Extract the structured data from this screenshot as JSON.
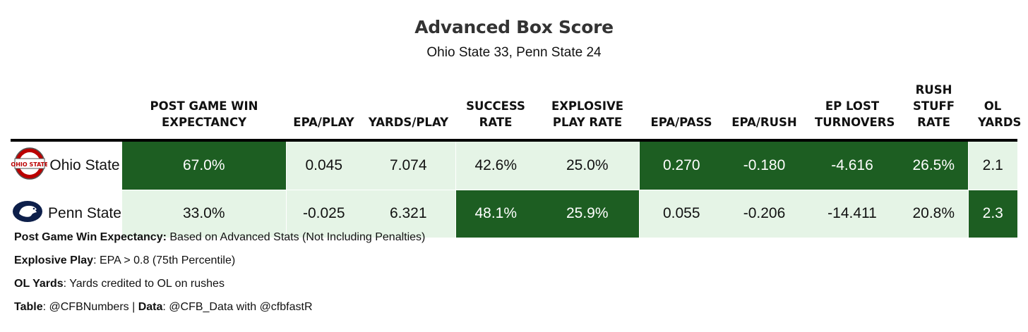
{
  "title": "Advanced Box Score",
  "subtitle": "Ohio State 33, Penn State 24",
  "colors": {
    "high": "#1d5e22",
    "low": "#e5f4e6",
    "text_on_high": "#ffffff"
  },
  "chart_data": {
    "type": "table",
    "columns": [
      "POST GAME WIN EXPECTANCY",
      "EPA/PLAY",
      "YARDS/PLAY",
      "SUCCESS RATE",
      "EXPLOSIVE PLAY RATE",
      "EPA/PASS",
      "EPA/RUSH",
      "EP LOST TURNOVERS",
      "RUSH STUFF RATE",
      "OL YARDS"
    ],
    "rows": [
      {
        "team": "Ohio State",
        "logo": "ohio-state-logo",
        "values": [
          "67.0%",
          "0.045",
          "7.074",
          "42.6%",
          "25.0%",
          "0.270",
          "-0.180",
          "-4.616",
          "26.5%",
          "2.1"
        ],
        "shade": [
          "high",
          "low",
          "low",
          "low",
          "low",
          "high",
          "high",
          "high",
          "high",
          "low"
        ]
      },
      {
        "team": "Penn State",
        "logo": "penn-state-logo",
        "values": [
          "33.0%",
          "-0.025",
          "6.321",
          "48.1%",
          "25.9%",
          "0.055",
          "-0.206",
          "-14.411",
          "20.8%",
          "2.3"
        ],
        "shade": [
          "low",
          "low",
          "low",
          "high",
          "high",
          "low",
          "low",
          "low",
          "low",
          "high"
        ]
      }
    ]
  },
  "notes": [
    {
      "label": "Post Game Win Expectancy:",
      "text": " Based on Advanced Stats (Not Including Penalties)"
    },
    {
      "label": "Explosive Play",
      "text": ": EPA > 0.8 (75th Percentile)"
    },
    {
      "label": "OL Yards",
      "text": ": Yards credited to OL on rushes"
    }
  ],
  "credit": {
    "table_label": "Table",
    "table_value": ": @CFBNumbers | ",
    "data_label": "Data",
    "data_value": ": @CFB_Data with @cfbfastR"
  }
}
